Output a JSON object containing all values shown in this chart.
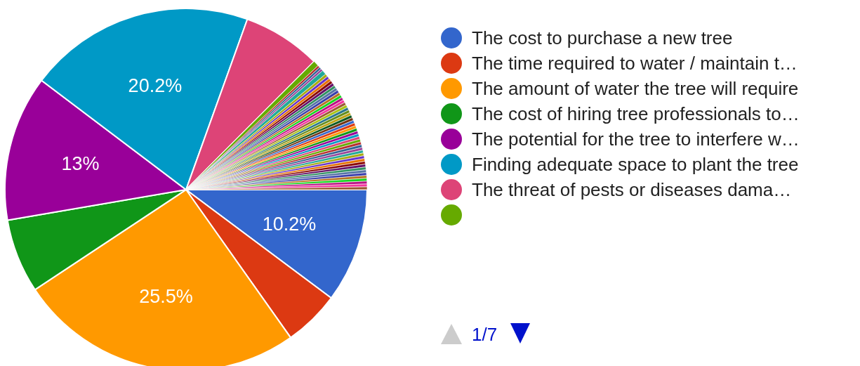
{
  "chart_data": {
    "type": "pie",
    "categories": [
      "The cost to purchase a new tree",
      "The time required to water / maintain t…",
      "The amount of water the tree will require",
      "The cost of hiring tree professionals to…",
      "The potential for the tree to interfere w…",
      "Finding adequate space to plant the tree",
      "The threat of pests or diseases dama…",
      null,
      null,
      null,
      null,
      null,
      null,
      null,
      null,
      null,
      null,
      null,
      null,
      null,
      null,
      null,
      null,
      null,
      null,
      null,
      null,
      null,
      null,
      null,
      null,
      null,
      null,
      null,
      null,
      null,
      null,
      null,
      null,
      null,
      null,
      null,
      null,
      null,
      null,
      null,
      null,
      null,
      null,
      null,
      null,
      null,
      null,
      null,
      null,
      null
    ],
    "values": [
      10.2,
      5,
      25.5,
      6.6,
      13,
      20.2,
      7.0,
      0.5,
      0.2,
      0.2,
      0.2,
      0.4,
      0.25,
      0.25,
      0.25,
      0.25,
      0.25,
      0.25,
      0.25,
      0.25,
      0.25,
      0.25,
      0.25,
      0.25,
      0.25,
      0.25,
      0.25,
      0.25,
      0.25,
      0.25,
      0.25,
      0.25,
      0.25,
      0.25,
      0.25,
      0.25,
      0.25,
      0.25,
      0.25,
      0.25,
      0.25,
      0.25,
      0.25,
      0.25,
      0.25,
      0.25,
      0.25,
      0.25,
      0.25,
      0.25,
      0.25,
      0.25,
      0.25,
      0.25,
      0.25,
      0.25
    ],
    "value_labels": [
      "10.2%",
      null,
      "25.5%",
      null,
      "13%",
      "20.2%",
      null,
      null,
      null,
      null,
      null,
      null,
      null,
      null,
      null,
      null,
      null,
      null,
      null,
      null,
      null,
      null,
      null,
      null,
      null,
      null,
      null,
      null,
      null,
      null,
      null,
      null,
      null,
      null,
      null,
      null,
      null,
      null,
      null,
      null,
      null,
      null,
      null,
      null,
      null,
      null,
      null,
      null,
      null,
      null,
      null,
      null,
      null,
      null,
      null,
      null
    ],
    "colors": [
      "#3366cc",
      "#dc3912",
      "#ff9900",
      "#109618",
      "#990099",
      "#0099c6",
      "#dd4477",
      "#66aa00",
      "#b82e2e",
      "#316395",
      "#994499",
      "#22aa99",
      "#aaaa11",
      "#6633cc",
      "#e67300",
      "#8b0707",
      "#651067",
      "#329262",
      "#5574a6",
      "#3b3eac",
      "#b77322",
      "#16d620",
      "#b91383",
      "#f4359e",
      "#9c5935",
      "#a9c413",
      "#2a778d",
      "#668d1c",
      "#bea413",
      "#0c5922",
      "#743411",
      "#3366cc",
      "#dc3912",
      "#ff9900",
      "#109618",
      "#990099",
      "#0099c6",
      "#dd4477",
      "#66aa00",
      "#b82e2e",
      "#316395",
      "#994499",
      "#22aa99",
      "#aaaa11",
      "#6633cc",
      "#e67300",
      "#8b0707",
      "#651067",
      "#329262",
      "#5574a6",
      "#3b3eac",
      "#b77322",
      "#16d620",
      "#b91383",
      "#f4359e",
      "#9c5935"
    ],
    "legend": "right",
    "annotations": [
      "1/7"
    ]
  }
}
